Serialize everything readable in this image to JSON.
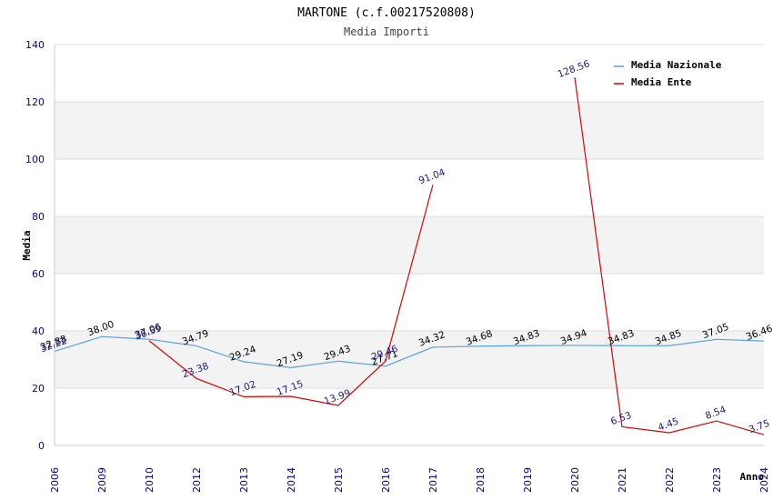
{
  "chart_data": {
    "type": "line",
    "title": "MARTONE (c.f.00217520808)",
    "subtitle": "Media Importi",
    "xlabel": "Anno",
    "ylabel": "Media",
    "ylim": [
      0,
      140
    ],
    "yticks": [
      0,
      20,
      40,
      60,
      80,
      100,
      120,
      140
    ],
    "categories": [
      "2006",
      "2009",
      "2010",
      "2012",
      "2013",
      "2014",
      "2015",
      "2016",
      "2017",
      "2018",
      "2019",
      "2020",
      "2021",
      "2022",
      "2023",
      "2024"
    ],
    "legend_position": "top-right",
    "series": [
      {
        "name": "Media Nazionale",
        "color": "#5ba3e0",
        "values": [
          32.88,
          38.0,
          37.06,
          34.79,
          29.24,
          27.19,
          29.43,
          27.71,
          34.32,
          34.68,
          34.83,
          34.94,
          34.83,
          34.85,
          37.05,
          36.46
        ],
        "labels": [
          "32.88",
          "38.00",
          "37.06",
          "34.79",
          "29.24",
          "27.19",
          "29.43",
          "27.71",
          "34.32",
          "34.68",
          "34.83",
          "34.94",
          "34.83",
          "34.85",
          "37.05",
          "36.46"
        ]
      },
      {
        "name": "Media Ente",
        "color": "#e00000",
        "segments": [
          [
            0,
            0
          ],
          [
            2,
            8
          ],
          [
            11,
            15
          ]
        ],
        "values": [
          32.22,
          null,
          36.59,
          23.38,
          17.02,
          17.15,
          13.99,
          29.46,
          91.04,
          null,
          null,
          128.56,
          6.53,
          4.45,
          8.54,
          3.75
        ],
        "labels": [
          "32.22",
          null,
          "36.59",
          "23.38",
          "17.02",
          "17.15",
          "13.99",
          "29.46",
          "91.04",
          null,
          null,
          "128.56",
          "6.53",
          "4.45",
          "8.54",
          "3.75"
        ]
      }
    ]
  }
}
